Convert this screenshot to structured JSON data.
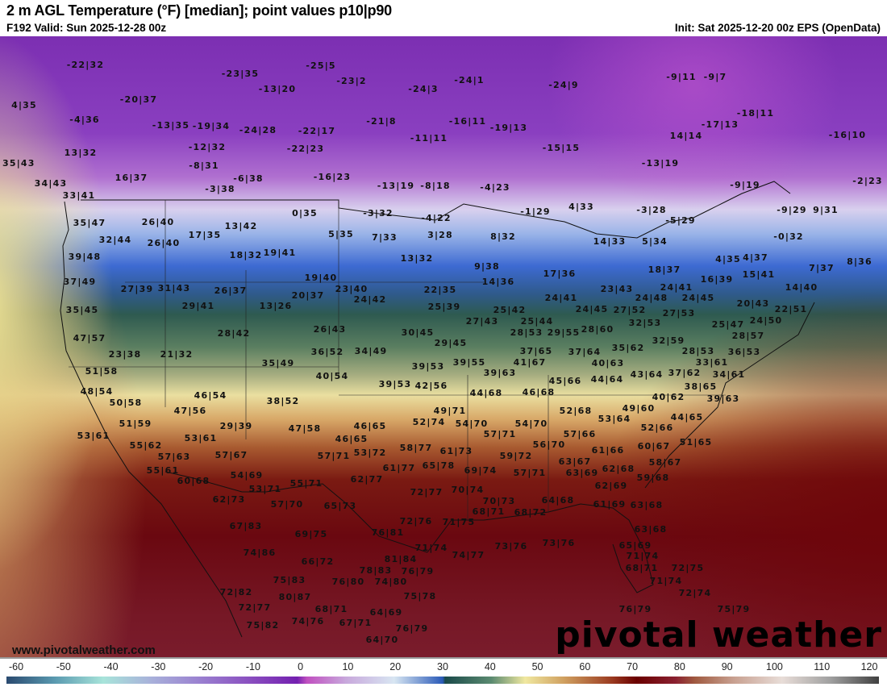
{
  "header": {
    "title": "2 m AGL Temperature (°F) [median]; point values p10|p90",
    "valid": "F192 Valid: Sun 2025-12-28 00z",
    "init": "Init: Sat 2025-12-20 00z EPS (OpenData)"
  },
  "map": {
    "units": "°F",
    "point_values": [
      "-22|32",
      "-23|35",
      "-25|5",
      "-23|2",
      "-24|1",
      "-24|9",
      "-9|11",
      "-9|7",
      "4|35",
      "-20|37",
      "-13|20",
      "-24|3",
      "-4|36",
      "-13|35",
      "-19|34",
      "-24|28",
      "-22|17",
      "-21|8",
      "-16|11",
      "-19|13",
      "-11|11",
      "-17|13",
      "-18|11",
      "14|14",
      "-16|10",
      "13|32",
      "-12|32",
      "-22|23",
      "-15|15",
      "-13|19",
      "35|43",
      "-8|31",
      "-16|23",
      "16|37",
      "-3|38",
      "-6|38",
      "-13|19",
      "-8|18",
      "-4|23",
      "-9|19",
      "-2|23",
      "34|43",
      "33|41",
      "35|47",
      "0|35",
      "-3|32",
      "-4|22",
      "-1|29",
      "4|33",
      "-3|28",
      "-5|29",
      "-9|29",
      "9|31",
      "26|40",
      "17|35",
      "13|42",
      "5|35",
      "7|33",
      "3|28",
      "8|32",
      "14|33",
      "5|34",
      "-0|32",
      "32|44",
      "26|40",
      "18|32",
      "19|41",
      "13|32",
      "9|38",
      "17|36",
      "18|37",
      "4|35",
      "4|37",
      "15|41",
      "7|37",
      "8|36",
      "39|48",
      "37|49",
      "27|39",
      "31|43",
      "26|37",
      "19|40",
      "23|40",
      "22|35",
      "14|36",
      "24|41",
      "24|45",
      "23|43",
      "24|41",
      "24|45",
      "16|39",
      "14|40",
      "35|45",
      "29|41",
      "13|26",
      "20|37",
      "24|42",
      "25|39",
      "27|43",
      "25|42",
      "25|44",
      "29|55",
      "27|52",
      "24|48",
      "27|53",
      "20|43",
      "22|51",
      "24|50",
      "25|47",
      "28|57",
      "47|57",
      "28|42",
      "26|43",
      "30|45",
      "29|45",
      "28|53",
      "28|60",
      "32|53",
      "32|59",
      "28|53",
      "23|38",
      "21|32",
      "36|52",
      "34|49",
      "37|65",
      "37|64",
      "35|62",
      "33|61",
      "36|53",
      "35|49",
      "39|53",
      "39|55",
      "39|63",
      "41|67",
      "40|63",
      "43|64",
      "37|62",
      "34|61",
      "51|58",
      "40|54",
      "39|53",
      "42|56",
      "44|68",
      "46|68",
      "45|66",
      "44|64",
      "38|65",
      "40|62",
      "48|54",
      "50|58",
      "46|54",
      "38|52",
      "39|63",
      "49|60",
      "52|68",
      "53|64",
      "44|65",
      "47|56",
      "49|71",
      "51|59",
      "52|74",
      "54|70",
      "29|39",
      "47|58",
      "46|65",
      "52|66",
      "51|65",
      "53|61",
      "53|61",
      "46|65",
      "57|71",
      "54|70",
      "57|66",
      "55|62",
      "57|63",
      "56|70",
      "60|67",
      "61|66",
      "58|77",
      "57|67",
      "57|71",
      "53|72",
      "61|73",
      "59|72",
      "63|67",
      "58|67",
      "65|78",
      "69|74",
      "62|68",
      "55|61",
      "60|68",
      "54|69",
      "62|77",
      "61|77",
      "57|71",
      "63|69",
      "59|68",
      "53|71",
      "55|71",
      "70|74",
      "70|73",
      "62|69",
      "72|77",
      "62|73",
      "57|70",
      "65|73",
      "68|71",
      "64|68",
      "61|69",
      "63|68",
      "71|75",
      "68|72",
      "72|76",
      "67|83",
      "76|81",
      "63|68",
      "69|75",
      "71|74",
      "74|77",
      "73|76",
      "73|76",
      "65|69",
      "71|74",
      "74|86",
      "81|84",
      "66|72",
      "78|83",
      "72|75",
      "68|71",
      "75|83",
      "76|80",
      "74|80",
      "76|79",
      "71|74",
      "72|82",
      "80|87",
      "75|78",
      "72|74",
      "72|77",
      "68|71",
      "75|79",
      "74|76",
      "67|71",
      "64|69",
      "76|79",
      "75|82",
      "76|79",
      "64|70"
    ]
  },
  "watermark": {
    "url": "www.pivotalweather.com",
    "logo": "pivotal weather"
  },
  "colorbar": {
    "ticks": [
      "-60",
      "-50",
      "-40",
      "-30",
      "-20",
      "-10",
      "0",
      "10",
      "20",
      "30",
      "40",
      "50",
      "60",
      "70",
      "80",
      "90",
      "100",
      "110",
      "120"
    ],
    "range": [
      -60,
      120
    ],
    "stops": [
      {
        "v": -60,
        "c": "#2a4a70"
      },
      {
        "v": -50,
        "c": "#5a9ab0"
      },
      {
        "v": -40,
        "c": "#a8e4da"
      },
      {
        "v": -30,
        "c": "#a8b0da"
      },
      {
        "v": -20,
        "c": "#9a80d0"
      },
      {
        "v": -10,
        "c": "#8a50c0"
      },
      {
        "v": 0,
        "c": "#7420b0"
      },
      {
        "v": 2,
        "c": "#c050c0"
      },
      {
        "v": 10,
        "c": "#c8a8dc"
      },
      {
        "v": 20,
        "c": "#d8e6f2"
      },
      {
        "v": 30,
        "c": "#2a5ab8"
      },
      {
        "v": 30.5,
        "c": "#1a4a4a"
      },
      {
        "v": 40,
        "c": "#5a8a70"
      },
      {
        "v": 47,
        "c": "#f0e8a0"
      },
      {
        "v": 55,
        "c": "#d0a060"
      },
      {
        "v": 65,
        "c": "#9a3a20"
      },
      {
        "v": 70,
        "c": "#6a0000"
      },
      {
        "v": 78,
        "c": "#8a2030"
      },
      {
        "v": 82,
        "c": "#a05a40"
      },
      {
        "v": 90,
        "c": "#c8a090"
      },
      {
        "v": 100,
        "c": "#e8ddd8"
      },
      {
        "v": 110,
        "c": "#a0a0a0"
      },
      {
        "v": 120,
        "c": "#404040"
      }
    ]
  }
}
